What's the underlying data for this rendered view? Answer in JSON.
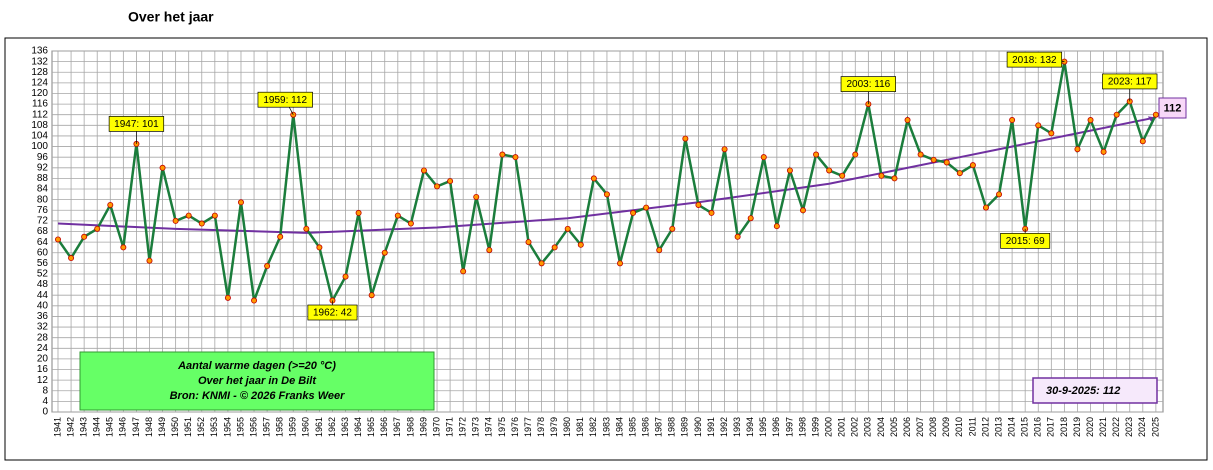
{
  "chart_data": {
    "type": "line",
    "title": "Over het jaar",
    "categories": [
      "1941",
      "1942",
      "1943",
      "1944",
      "1945",
      "1946",
      "1947",
      "1948",
      "1949",
      "1950",
      "1951",
      "1952",
      "1953",
      "1954",
      "1955",
      "1956",
      "1957",
      "1958",
      "1959",
      "1960",
      "1961",
      "1962",
      "1963",
      "1964",
      "1965",
      "1966",
      "1967",
      "1968",
      "1969",
      "1970",
      "1971",
      "1972",
      "1973",
      "1974",
      "1975",
      "1976",
      "1977",
      "1978",
      "1979",
      "1980",
      "1981",
      "1982",
      "1983",
      "1984",
      "1985",
      "1986",
      "1987",
      "1988",
      "1989",
      "1990",
      "1991",
      "1992",
      "1993",
      "1994",
      "1995",
      "1996",
      "1997",
      "1998",
      "1999",
      "2000",
      "2001",
      "2002",
      "2003",
      "2004",
      "2005",
      "2006",
      "2007",
      "2008",
      "2009",
      "2010",
      "2011",
      "2012",
      "2013",
      "2014",
      "2015",
      "2016",
      "2017",
      "2018",
      "2019",
      "2020",
      "2021",
      "2022",
      "2023",
      "2024",
      "2025"
    ],
    "series": [
      {
        "color": "#1b7d3c",
        "marker_color": "#ff9900",
        "values": [
          65,
          58,
          66,
          69,
          78,
          62,
          101,
          57,
          92,
          72,
          74,
          71,
          74,
          43,
          79,
          42,
          55,
          66,
          112,
          69,
          62,
          42,
          51,
          75,
          44,
          60,
          74,
          71,
          91,
          85,
          87,
          53,
          81,
          61,
          97,
          96,
          64,
          56,
          62,
          69,
          63,
          88,
          82,
          56,
          75,
          77,
          61,
          69,
          103,
          78,
          75,
          99,
          66,
          73,
          96,
          70,
          91,
          76,
          97,
          91,
          89,
          97,
          116,
          89,
          88,
          110,
          97,
          95,
          94,
          90,
          93,
          77,
          82,
          110,
          69,
          108,
          105,
          132,
          99,
          110,
          98,
          112,
          117,
          102,
          112
        ]
      }
    ],
    "trend": {
      "color": "#7030a0",
      "x": [
        1941,
        1950,
        1960,
        1970,
        1980,
        1990,
        2000,
        2010,
        2020,
        2025
      ],
      "values": [
        71,
        69,
        67.5,
        69.5,
        73,
        79,
        86,
        96,
        106,
        111
      ]
    },
    "ylim": [
      0,
      136
    ],
    "yticks": [
      0,
      4,
      8,
      12,
      16,
      20,
      24,
      28,
      32,
      36,
      40,
      44,
      48,
      52,
      56,
      60,
      64,
      68,
      72,
      76,
      80,
      84,
      88,
      92,
      96,
      100,
      104,
      108,
      112,
      116,
      120,
      124,
      128,
      132,
      136
    ],
    "grid": true,
    "annotations": [
      {
        "text": "1947: 101",
        "category": "1947",
        "position": "above"
      },
      {
        "text": "1959: 112",
        "category": "1959",
        "position": "above-left"
      },
      {
        "text": "1962: 42",
        "category": "1962",
        "position": "below"
      },
      {
        "text": "2003: 116",
        "category": "2003",
        "position": "above"
      },
      {
        "text": "2015: 69",
        "category": "2015",
        "position": "below"
      },
      {
        "text": "2018: 132",
        "category": "2018",
        "position": "left"
      },
      {
        "text": "2023: 117",
        "category": "2023",
        "position": "above"
      }
    ],
    "end_label": 112,
    "date_note": "30-9-2025: 112",
    "notes": [
      "Aantal warme dagen (>=20 °C)",
      "Over het jaar  in De Bilt",
      "Bron: KNMI -    © 2026 Franks Weer"
    ]
  }
}
